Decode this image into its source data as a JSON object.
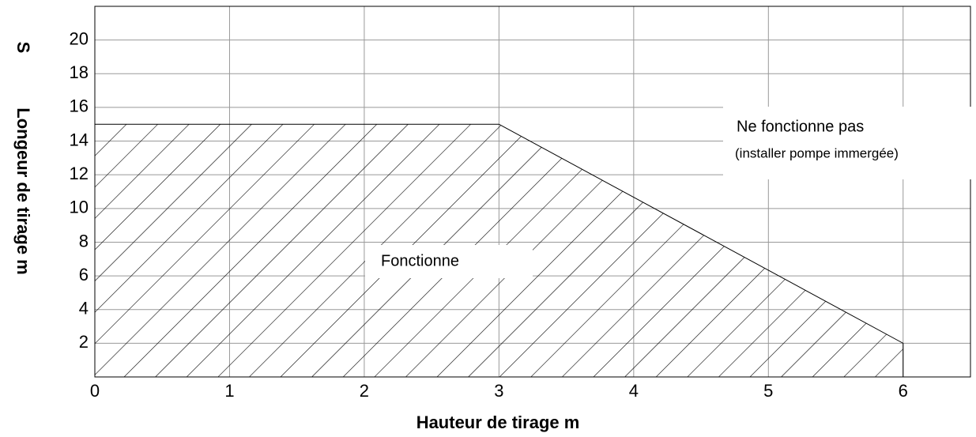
{
  "chart_data": {
    "type": "area",
    "x": [
      0,
      3,
      6
    ],
    "values": [
      15,
      15,
      2
    ],
    "color": "#000000",
    "xlim": [
      0,
      6.5
    ],
    "ylim": [
      0,
      22
    ],
    "xticks": [
      0,
      1,
      2,
      3,
      4,
      5,
      6
    ],
    "yticks": [
      2,
      4,
      6,
      8,
      10,
      12,
      14,
      16,
      18,
      20
    ],
    "grid": true,
    "x_label": "Hauteur de tirage m",
    "y_label": "Longeur de tirage   m",
    "y_label_top": "S",
    "annotations": [
      "Fonctionne",
      "Ne fonctionne pas",
      "(installer pompe immergée)"
    ]
  }
}
